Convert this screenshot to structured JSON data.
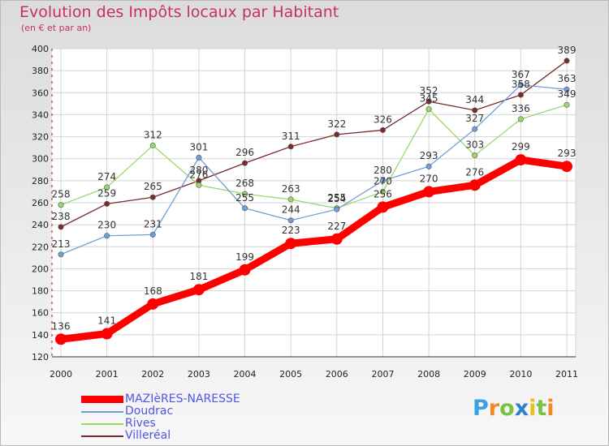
{
  "title": "Evolution des Impôts locaux par Habitant",
  "subtitle": "(en € et par an)",
  "logo": "Proxiti",
  "chart_data": {
    "type": "line",
    "title": "Evolution des Impôts locaux par Habitant",
    "subtitle": "(en € et par an)",
    "xlabel": "",
    "ylabel": "",
    "x": [
      "2000",
      "2001",
      "2002",
      "2003",
      "2004",
      "2005",
      "2006",
      "2007",
      "2008",
      "2009",
      "2010",
      "2011"
    ],
    "ylim": [
      120,
      400
    ],
    "yticks": [
      120,
      140,
      160,
      180,
      200,
      220,
      240,
      260,
      280,
      300,
      320,
      340,
      360,
      380,
      400
    ],
    "grid": true,
    "legend": "bottom-left",
    "series": [
      {
        "name": "MAZIèRES-NARESSE",
        "color": "#ff0000",
        "values": [
          136,
          141,
          168,
          181,
          199,
          223,
          227,
          256,
          270,
          276,
          299,
          293
        ]
      },
      {
        "name": "Doudrac",
        "color": "#6f9fd8",
        "values": [
          213,
          230,
          231,
          301,
          255,
          244,
          254,
          280,
          293,
          327,
          367,
          363
        ]
      },
      {
        "name": "Rives",
        "color": "#99d86a",
        "values": [
          258,
          274,
          312,
          276,
          268,
          263,
          255,
          270,
          345,
          303,
          336,
          349
        ]
      },
      {
        "name": "Villeréal",
        "color": "#7a2a2a",
        "values": [
          238,
          259,
          265,
          280,
          296,
          311,
          322,
          326,
          352,
          344,
          358,
          389
        ]
      }
    ]
  }
}
